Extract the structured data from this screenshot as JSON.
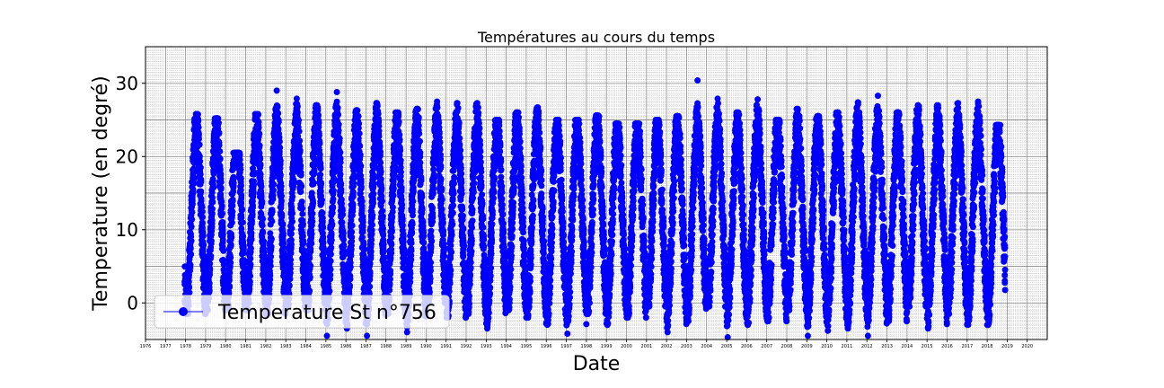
{
  "chart_data": {
    "type": "scatter",
    "title": "Températures au cours du temps",
    "xlabel": "Date",
    "ylabel": "Temperature (en degré)",
    "x_type": "date",
    "xlim": [
      "1976-01-01",
      "2020-12-31"
    ],
    "ylim": [
      -5,
      35
    ],
    "yticks": [
      0,
      10,
      20,
      30
    ],
    "xticks": [
      "1976",
      "1977",
      "1978",
      "1979",
      "1980",
      "1981",
      "1982",
      "1983",
      "1984",
      "1985",
      "1986",
      "1987",
      "1988",
      "1989",
      "1990",
      "1991",
      "1992",
      "1993",
      "1994",
      "1995",
      "1996",
      "1997",
      "1998",
      "1999",
      "2000",
      "2001",
      "2002",
      "2003",
      "2004",
      "2005",
      "2006",
      "2007",
      "2008",
      "2009",
      "2010",
      "2011",
      "2012",
      "2013",
      "2014",
      "2015",
      "2016",
      "2017",
      "2018",
      "2019",
      "2020"
    ],
    "grid": true,
    "minor_grid": true,
    "legend_position": "lower-left",
    "series": [
      {
        "name": "Temperature St n°756",
        "color": "#0000ff",
        "marker": "circle",
        "x_range": [
          "1977-12-15",
          "2018-11-25"
        ],
        "seasonal_summary": {
          "typical_summer_max": 24,
          "typical_winter_min": 0,
          "mean": 12
        },
        "yearly_extremes": [
          {
            "year": 1978,
            "max": 25.8,
            "min": -1.5
          },
          {
            "year": 1979,
            "max": 25.2,
            "min": -1.0
          },
          {
            "year": 1980,
            "max": 20.5,
            "min": -0.5
          },
          {
            "year": 1981,
            "max": 25.8,
            "min": -1.0
          },
          {
            "year": 1982,
            "max": 29.0,
            "min": -1.5
          },
          {
            "year": 1983,
            "max": 27.9,
            "min": -0.5
          },
          {
            "year": 1984,
            "max": 27.0,
            "min": -1.0
          },
          {
            "year": 1985,
            "max": 28.8,
            "min": -4.5
          },
          {
            "year": 1986,
            "max": 26.3,
            "min": -3.5
          },
          {
            "year": 1987,
            "max": 27.3,
            "min": -4.5
          },
          {
            "year": 1988,
            "max": 26.0,
            "min": -1.5
          },
          {
            "year": 1989,
            "max": 26.5,
            "min": -4.0
          },
          {
            "year": 1990,
            "max": 27.5,
            "min": 0.0
          },
          {
            "year": 1991,
            "max": 27.3,
            "min": -2.0
          },
          {
            "year": 1992,
            "max": 27.3,
            "min": -1.5
          },
          {
            "year": 1993,
            "max": 25.0,
            "min": -3.5
          },
          {
            "year": 1994,
            "max": 26.0,
            "min": -1.0
          },
          {
            "year": 1995,
            "max": 26.7,
            "min": -2.0
          },
          {
            "year": 1996,
            "max": 25.0,
            "min": -3.0
          },
          {
            "year": 1997,
            "max": 25.0,
            "min": -4.2
          },
          {
            "year": 1998,
            "max": 25.6,
            "min": -1.5
          },
          {
            "year": 1999,
            "max": 24.5,
            "min": -3.0
          },
          {
            "year": 2000,
            "max": 24.5,
            "min": -2.0
          },
          {
            "year": 2001,
            "max": 25.0,
            "min": -0.5
          },
          {
            "year": 2002,
            "max": 25.5,
            "min": -4.0
          },
          {
            "year": 2003,
            "max": 30.4,
            "min": -2.5
          },
          {
            "year": 2004,
            "max": 27.9,
            "min": -0.5
          },
          {
            "year": 2005,
            "max": 26.0,
            "min": -4.7
          },
          {
            "year": 2006,
            "max": 27.8,
            "min": -3.0
          },
          {
            "year": 2007,
            "max": 25.0,
            "min": -2.5
          },
          {
            "year": 2008,
            "max": 26.5,
            "min": -1.0
          },
          {
            "year": 2009,
            "max": 25.5,
            "min": -4.5
          },
          {
            "year": 2010,
            "max": 26.0,
            "min": -3.8
          },
          {
            "year": 2011,
            "max": 27.4,
            "min": -3.5
          },
          {
            "year": 2012,
            "max": 28.3,
            "min": -4.5
          },
          {
            "year": 2013,
            "max": 26.0,
            "min": -2.5
          },
          {
            "year": 2014,
            "max": 27.0,
            "min": -0.5
          },
          {
            "year": 2015,
            "max": 27.0,
            "min": -3.5
          },
          {
            "year": 2016,
            "max": 27.3,
            "min": -1.5
          },
          {
            "year": 2017,
            "max": 27.5,
            "min": -3.0
          },
          {
            "year": 2018,
            "max": 24.3,
            "min": -3.0
          }
        ]
      }
    ]
  }
}
